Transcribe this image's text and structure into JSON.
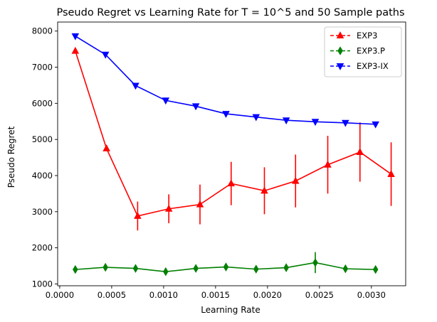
{
  "chart_data": {
    "type": "line",
    "title": "Pseudo Regret vs Learning Rate for T = 10^5 and 50 Sample paths",
    "xlabel": "Learning Rate",
    "ylabel": "Pseudo Regret",
    "xlim": [
      -2e-05,
      0.00333
    ],
    "ylim": [
      950,
      8250
    ],
    "xticks": [
      0.0,
      0.0005,
      0.001,
      0.0015,
      0.002,
      0.0025,
      0.003
    ],
    "xtick_labels": [
      "0.0000",
      "0.0005",
      "0.0010",
      "0.0015",
      "0.0020",
      "0.0025",
      "0.0030"
    ],
    "yticks": [
      1000,
      2000,
      3000,
      4000,
      5000,
      6000,
      7000,
      8000
    ],
    "ytick_labels": [
      "1000",
      "2000",
      "3000",
      "4000",
      "5000",
      "6000",
      "7000",
      "8000"
    ],
    "grid": false,
    "legend_position": "top-right",
    "series": [
      {
        "name": "EXP3",
        "color": "#ff0000",
        "marker": "triangle-up",
        "x": [
          0.00015,
          0.00045,
          0.00075,
          0.00105,
          0.00135,
          0.00165,
          0.00197,
          0.00227,
          0.00258,
          0.00289,
          0.00319
        ],
        "y": [
          7450,
          4750,
          2880,
          3080,
          3200,
          3780,
          3580,
          3850,
          4300,
          4650,
          4040
        ],
        "err": [
          0,
          0,
          400,
          400,
          550,
          600,
          650,
          730,
          800,
          820,
          880
        ]
      },
      {
        "name": "EXP3.P",
        "color": "#008000",
        "marker": "thin-diamond",
        "x": [
          0.00015,
          0.00044,
          0.00073,
          0.00102,
          0.00131,
          0.0016,
          0.00189,
          0.00218,
          0.00246,
          0.00275,
          0.00304
        ],
        "y": [
          1400,
          1460,
          1430,
          1340,
          1430,
          1470,
          1410,
          1450,
          1590,
          1420,
          1400
        ],
        "err": [
          0,
          0,
          0,
          0,
          0,
          0,
          0,
          0,
          290,
          0,
          0
        ]
      },
      {
        "name": "EXP3-IX",
        "color": "#0000ff",
        "marker": "triangle-down",
        "x": [
          0.00015,
          0.00044,
          0.00073,
          0.00102,
          0.00131,
          0.0016,
          0.00189,
          0.00218,
          0.00246,
          0.00275,
          0.00304
        ],
        "y": [
          7860,
          7350,
          6490,
          6080,
          5920,
          5710,
          5620,
          5530,
          5490,
          5460,
          5420
        ],
        "err": [
          0,
          0,
          0,
          0,
          0,
          0,
          0,
          0,
          0,
          0,
          0
        ]
      }
    ]
  }
}
